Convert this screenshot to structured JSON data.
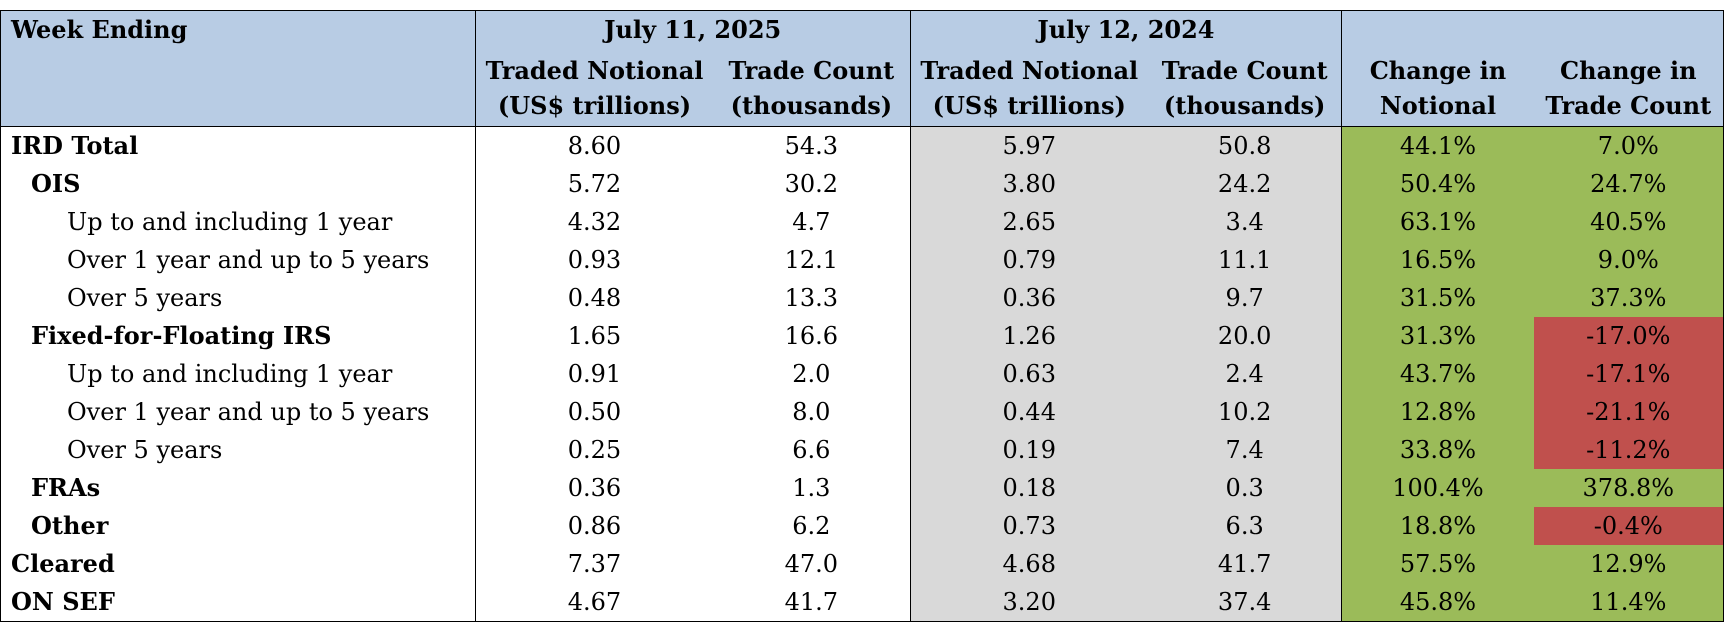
{
  "header": {
    "week_ending": "Week Ending",
    "period_2025": "July 11, 2025",
    "period_2024": "July 12, 2024",
    "notional_line1": "Traded Notional",
    "notional_line2": "(US$ trillions)",
    "count_line1": "Trade Count",
    "count_line2": "(thousands)",
    "chg_notional_line1": "Change in",
    "chg_notional_line2": "Notional",
    "chg_count_line1": "Change in",
    "chg_count_line2": "Trade Count"
  },
  "colors": {
    "header_bg": "#b8cce4",
    "prior_year_bg": "#d9d9d9",
    "positive_change": "#9bbb59",
    "negative_change": "#c0504d"
  },
  "rows": [
    {
      "label": "IRD Total",
      "level": 0,
      "notional_2025": "8.60",
      "count_2025": "54.3",
      "notional_2024": "5.97",
      "count_2024": "50.8",
      "chg_notional": "44.1%",
      "chg_count": "7.0%"
    },
    {
      "label": "OIS",
      "level": 1,
      "notional_2025": "5.72",
      "count_2025": "30.2",
      "notional_2024": "3.80",
      "count_2024": "24.2",
      "chg_notional": "50.4%",
      "chg_count": "24.7%"
    },
    {
      "label": "Up to and including 1 year",
      "level": 2,
      "notional_2025": "4.32",
      "count_2025": "4.7",
      "notional_2024": "2.65",
      "count_2024": "3.4",
      "chg_notional": "63.1%",
      "chg_count": "40.5%"
    },
    {
      "label": "Over 1 year and up to 5 years",
      "level": 2,
      "notional_2025": "0.93",
      "count_2025": "12.1",
      "notional_2024": "0.79",
      "count_2024": "11.1",
      "chg_notional": "16.5%",
      "chg_count": "9.0%"
    },
    {
      "label": "Over 5 years",
      "level": 2,
      "notional_2025": "0.48",
      "count_2025": "13.3",
      "notional_2024": "0.36",
      "count_2024": "9.7",
      "chg_notional": "31.5%",
      "chg_count": "37.3%"
    },
    {
      "label": "Fixed-for-Floating IRS",
      "level": 1,
      "notional_2025": "1.65",
      "count_2025": "16.6",
      "notional_2024": "1.26",
      "count_2024": "20.0",
      "chg_notional": "31.3%",
      "chg_count": "-17.0%"
    },
    {
      "label": "Up to and including 1 year",
      "level": 2,
      "notional_2025": "0.91",
      "count_2025": "2.0",
      "notional_2024": "0.63",
      "count_2024": "2.4",
      "chg_notional": "43.7%",
      "chg_count": "-17.1%"
    },
    {
      "label": "Over 1 year and up to 5 years",
      "level": 2,
      "notional_2025": "0.50",
      "count_2025": "8.0",
      "notional_2024": "0.44",
      "count_2024": "10.2",
      "chg_notional": "12.8%",
      "chg_count": "-21.1%"
    },
    {
      "label": "Over 5 years",
      "level": 2,
      "notional_2025": "0.25",
      "count_2025": "6.6",
      "notional_2024": "0.19",
      "count_2024": "7.4",
      "chg_notional": "33.8%",
      "chg_count": "-11.2%"
    },
    {
      "label": "FRAs",
      "level": 1,
      "notional_2025": "0.36",
      "count_2025": "1.3",
      "notional_2024": "0.18",
      "count_2024": "0.3",
      "chg_notional": "100.4%",
      "chg_count": "378.8%"
    },
    {
      "label": "Other",
      "level": 1,
      "notional_2025": "0.86",
      "count_2025": "6.2",
      "notional_2024": "0.73",
      "count_2024": "6.3",
      "chg_notional": "18.8%",
      "chg_count": "-0.4%"
    },
    {
      "label": "Cleared",
      "level": 0,
      "notional_2025": "7.37",
      "count_2025": "47.0",
      "notional_2024": "4.68",
      "count_2024": "41.7",
      "chg_notional": "57.5%",
      "chg_count": "12.9%"
    },
    {
      "label": "ON SEF",
      "level": 0,
      "notional_2025": "4.67",
      "count_2025": "41.7",
      "notional_2024": "3.20",
      "count_2024": "37.4",
      "chg_notional": "45.8%",
      "chg_count": "11.4%"
    }
  ]
}
